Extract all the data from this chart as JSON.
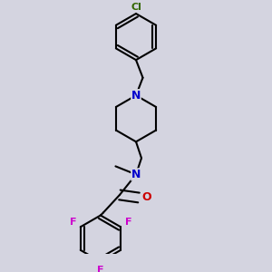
{
  "bg_color": "#d4d4e0",
  "bond_color": "#000000",
  "atom_colors": {
    "N": "#0000cc",
    "O": "#cc0000",
    "F": "#cc00cc",
    "Cl": "#336600"
  },
  "bond_width": 1.5,
  "figsize": [
    3.0,
    3.0
  ],
  "dpi": 100
}
